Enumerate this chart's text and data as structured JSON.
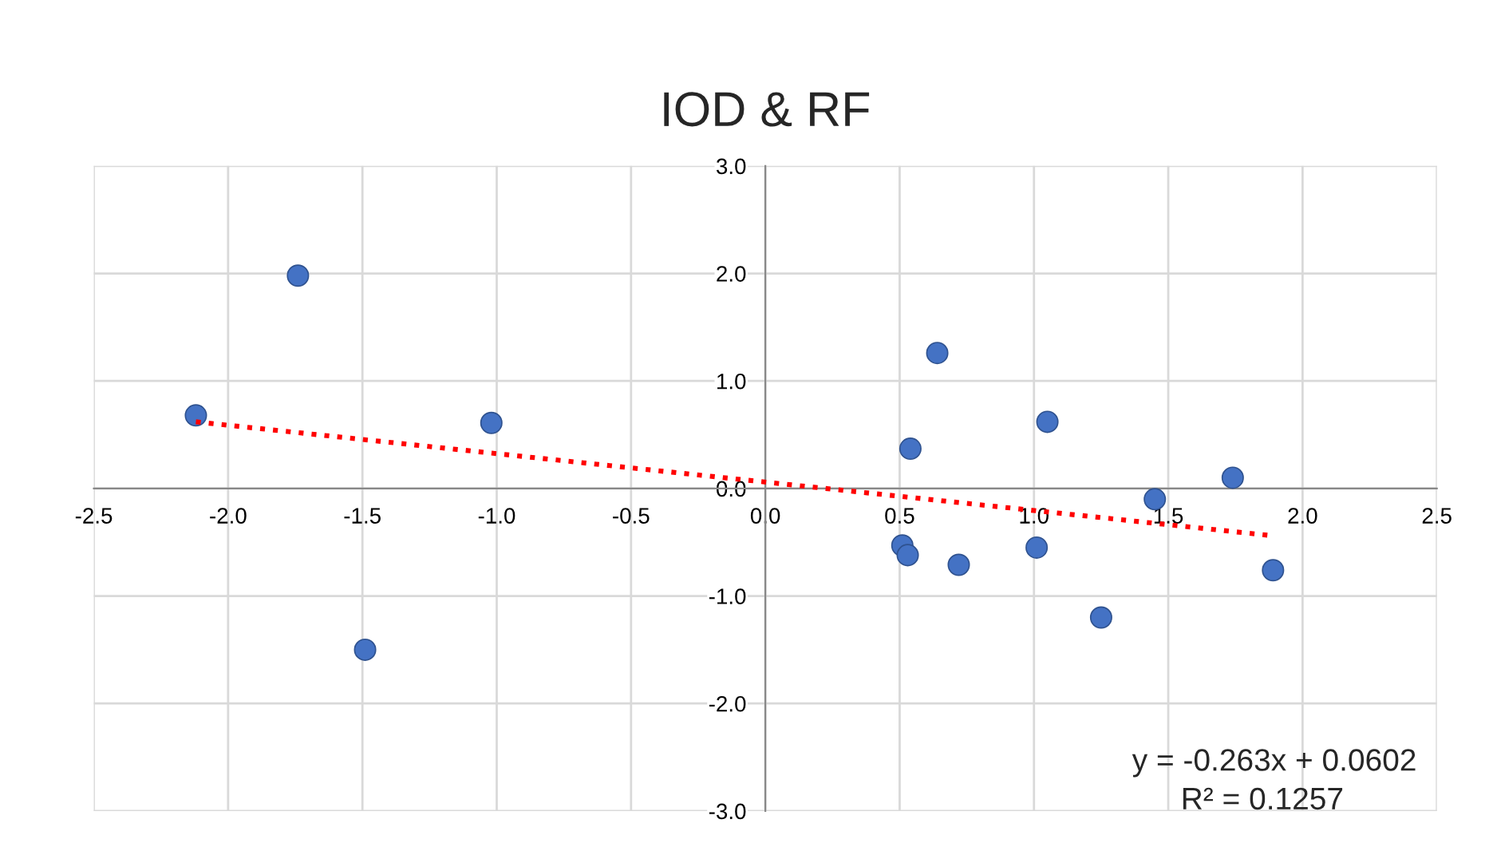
{
  "chart_data": {
    "type": "scatter",
    "title": "IOD & RF",
    "series": [
      {
        "color": "#4472c4",
        "marker": "circle",
        "x": [
          -2.12,
          -1.74,
          -1.49,
          -1.02,
          0.51,
          0.53,
          0.54,
          0.64,
          0.72,
          1.01,
          1.05,
          1.25,
          1.45,
          1.74,
          1.89
        ],
        "values": [
          0.68,
          1.98,
          -1.5,
          0.61,
          -0.53,
          -0.62,
          0.37,
          1.26,
          -0.71,
          -0.55,
          0.62,
          -1.2,
          -0.1,
          0.1,
          -0.76
        ]
      },
      {
        "type": "line",
        "color": "#ff0000",
        "line_style": "dotted",
        "x": [
          -2.12,
          1.89
        ],
        "values": [
          0.62,
          -0.44
        ]
      }
    ],
    "xlim": [
      -2.5,
      2.5
    ],
    "xticks": [
      {
        "value": -2.5,
        "label": "-2.5"
      },
      {
        "value": -2.0,
        "label": "-2.0"
      },
      {
        "value": -1.5,
        "label": "-1.5"
      },
      {
        "value": -1.0,
        "label": "-1.0"
      },
      {
        "value": -0.5,
        "label": "-0.5"
      },
      {
        "value": 0.0,
        "label": "0.0"
      },
      {
        "value": 0.5,
        "label": "0.5"
      },
      {
        "value": 1.0,
        "label": "1.0"
      },
      {
        "value": 1.5,
        "label": "1.5"
      },
      {
        "value": 2.0,
        "label": "2.0"
      },
      {
        "value": 2.5,
        "label": "2.5"
      }
    ],
    "ylim": [
      -3.0,
      3.0
    ],
    "yticks": [
      {
        "value": -3.0,
        "label": "-3.0"
      },
      {
        "value": -2.0,
        "label": "-2.0"
      },
      {
        "value": -1.0,
        "label": "-1.0"
      },
      {
        "value": 0.0,
        "label": "0.0"
      },
      {
        "value": 1.0,
        "label": "1.0"
      },
      {
        "value": 2.0,
        "label": "2.0"
      },
      {
        "value": 3.0,
        "label": "3.0"
      }
    ],
    "grid": true,
    "annotations": [
      "y = -0.263x + 0.0602",
      "R² = 0.1257"
    ]
  }
}
